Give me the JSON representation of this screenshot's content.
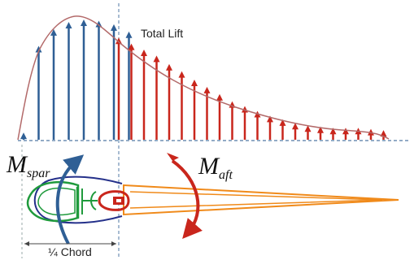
{
  "labels": {
    "total_lift": "Total Lift",
    "m_spar_main": "M",
    "m_spar_sub": "spar",
    "m_aft_main": "M",
    "m_aft_sub": "aft",
    "quarter_chord": "¼ Chord"
  },
  "lift_distribution": {
    "forward_arrow_values": [
      0.06,
      0.78,
      0.92,
      0.98,
      1.0,
      0.99,
      0.96,
      0.9
    ],
    "aft_arrow_values": [
      0.85,
      0.8,
      0.75,
      0.7,
      0.63,
      0.57,
      0.5,
      0.44,
      0.38,
      0.32,
      0.28,
      0.24,
      0.2,
      0.17,
      0.14,
      0.12,
      0.11,
      0.1,
      0.1,
      0.1,
      0.09,
      0.08
    ]
  },
  "colors": {
    "forward_arrow": "#2f5f95",
    "aft_arrow": "#c9261c",
    "envelope": "#b36a6a",
    "spar": "#1f9a3c",
    "rib_outline": "#24308a",
    "aft_section": "#f08a1a",
    "moment_spar": "#2f5f95",
    "moment_aft": "#c9261c",
    "axis_dashed": "#6f8fb3"
  }
}
